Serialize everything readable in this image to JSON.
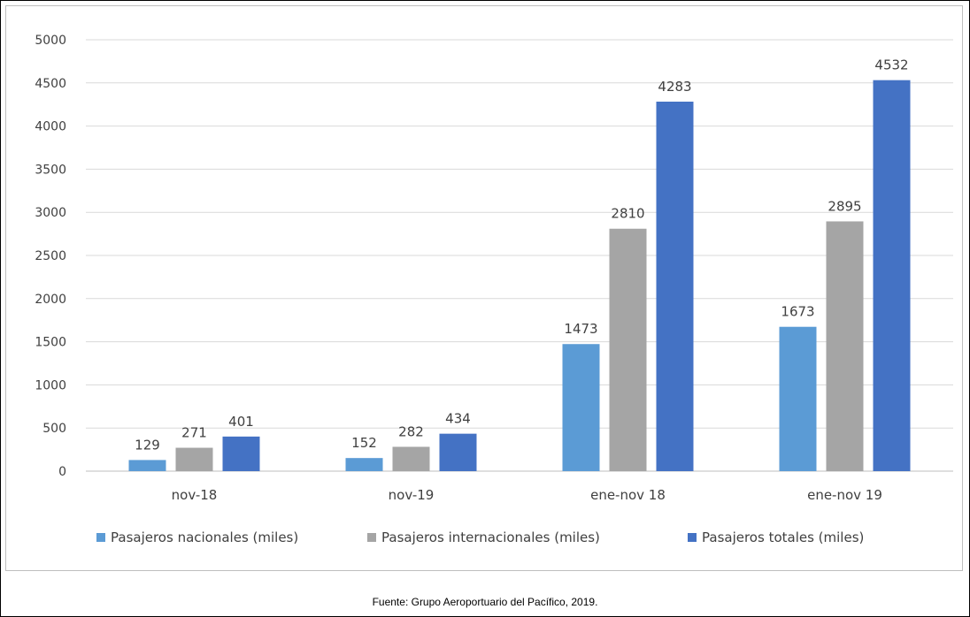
{
  "chart_data": {
    "type": "bar",
    "categories": [
      "nov-18",
      "nov-19",
      "ene-nov 18",
      "ene-nov 19"
    ],
    "series": [
      {
        "name": "Pasajeros nacionales (miles)",
        "values": [
          129,
          152,
          1473,
          1673
        ],
        "color": "#5b9bd5"
      },
      {
        "name": "Pasajeros internacionales (miles)",
        "values": [
          271,
          282,
          2810,
          2895
        ],
        "color": "#a5a5a5"
      },
      {
        "name": "Pasajeros totales (miles)",
        "values": [
          401,
          434,
          4283,
          4532
        ],
        "color": "#4472c4"
      }
    ],
    "ylim": [
      0,
      5000
    ],
    "yticks": [
      0,
      500,
      1000,
      1500,
      2000,
      2500,
      3000,
      3500,
      4000,
      4500,
      5000
    ],
    "grid": true,
    "legend_position": "bottom",
    "data_labels": true,
    "gridline_color": "#d9d9d9",
    "text_color": "#404040"
  },
  "source": "Fuente: Grupo Aeroportuario del Pacífico, 2019."
}
